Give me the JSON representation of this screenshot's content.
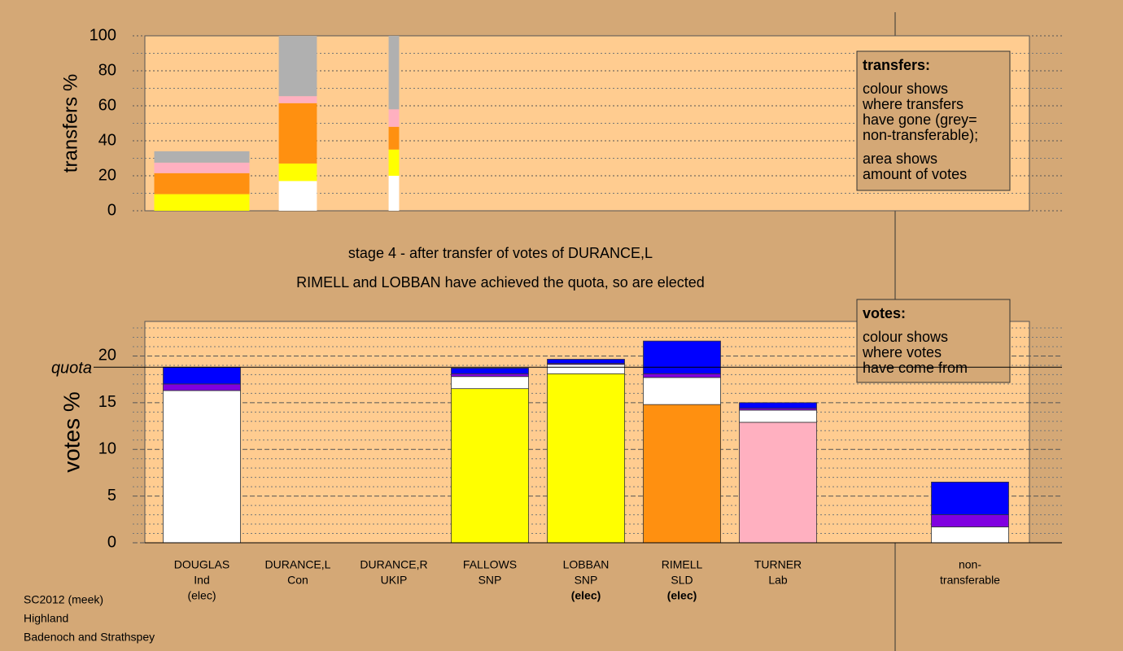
{
  "footer": [
    "SC2012 (meek)",
    "Highland",
    "Badenoch and Strathspey"
  ],
  "chart_data": [
    {
      "type": "bar",
      "stacked": true,
      "ylabel": "transfers %",
      "ylim": [
        0,
        100
      ],
      "yticks": [
        0,
        20,
        40,
        60,
        80,
        100
      ],
      "minor_yticks": [
        10,
        30,
        50,
        70,
        90
      ],
      "widths": [
        1.0,
        0.4,
        0.11,
        null,
        null,
        null,
        null,
        null,
        null
      ],
      "legend": {
        "title": "transfers:",
        "paragraphs": [
          [
            "colour shows",
            "where transfers",
            "have gone (grey=",
            "non-transferable);"
          ],
          [
            "area shows",
            "amount of votes"
          ]
        ]
      },
      "series": [
        {
          "color": "#ffffff",
          "values": [
            0,
            17,
            20,
            null,
            null,
            null,
            null,
            null,
            null
          ]
        },
        {
          "color": "#ffff00",
          "values": [
            9.5,
            10,
            15,
            null,
            null,
            null,
            null,
            null,
            null
          ]
        },
        {
          "color": "#ff9010",
          "values": [
            12,
            34.5,
            13,
            null,
            null,
            null,
            null,
            null,
            null
          ]
        },
        {
          "color": "#ffb0c0",
          "values": [
            6,
            4,
            10,
            null,
            null,
            null,
            null,
            null,
            null
          ]
        },
        {
          "color": "#b0b0b0",
          "values": [
            6.5,
            34.5,
            42,
            null,
            null,
            null,
            null,
            null,
            null
          ]
        }
      ]
    },
    {
      "type": "bar",
      "stacked": true,
      "ylabel": "votes %",
      "titles": [
        "stage 4 - after transfer of votes of DURANCE,L",
        "RIMELL and LOBBAN have achieved the quota, so are elected"
      ],
      "quota": {
        "label": "quota",
        "value": 18.8
      },
      "ylim": [
        0,
        23.7
      ],
      "yticks": [
        0,
        5,
        10,
        15,
        20
      ],
      "minor_yticks": [
        1,
        2,
        3,
        4,
        6,
        7,
        8,
        9,
        11,
        12,
        13,
        14,
        16,
        17,
        18,
        19,
        21,
        22,
        23
      ],
      "categories": [
        "DOUGLAS",
        "DURANCE,L",
        "DURANCE,R",
        "FALLOWS",
        "LOBBAN",
        "RIMELL",
        "TURNER",
        null,
        "non-"
      ],
      "parties": [
        "Ind",
        "Con",
        "UKIP",
        "SNP",
        "SNP",
        "SLD",
        "Lab",
        null,
        "transferable"
      ],
      "status": [
        "(elec)",
        null,
        null,
        null,
        "(elec)",
        "(elec)",
        null,
        null,
        null
      ],
      "status_bold": [
        false,
        null,
        null,
        null,
        true,
        true,
        null,
        null,
        null
      ],
      "legend": {
        "title": "votes:",
        "paragraphs": [
          [
            "colour shows",
            "where votes",
            "have come from"
          ]
        ]
      },
      "series": [
        {
          "color": "#ffffff",
          "values": [
            16.3,
            null,
            null,
            null,
            null,
            null,
            null,
            null,
            null
          ]
        },
        {
          "color": "#ffff00",
          "values": [
            null,
            null,
            null,
            16.5,
            18.1,
            null,
            null,
            null,
            null
          ]
        },
        {
          "color": "#ff9010",
          "values": [
            null,
            null,
            null,
            null,
            null,
            14.8,
            null,
            null,
            null
          ]
        },
        {
          "color": "#ffb0c0",
          "values": [
            null,
            null,
            null,
            null,
            null,
            null,
            12.9,
            null,
            null
          ]
        },
        {
          "color": "#ffffff",
          "values": [
            null,
            null,
            null,
            1.3,
            1.0,
            2.9,
            1.3,
            null,
            1.7
          ]
        },
        {
          "color": "#8000e0",
          "values": [
            0.7,
            null,
            null,
            0.3,
            0.1,
            0.4,
            0.2,
            null,
            1.3
          ]
        },
        {
          "color": "#0000ff",
          "values": [
            1.8,
            null,
            null,
            0.6,
            0.45,
            3.5,
            0.6,
            null,
            3.5
          ]
        }
      ]
    }
  ]
}
